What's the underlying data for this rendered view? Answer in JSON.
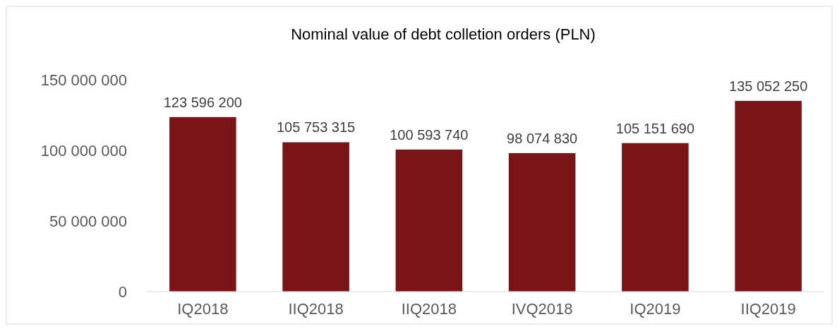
{
  "chart_data": {
    "type": "bar",
    "title": "Nominal value of debt colletion orders (PLN)",
    "categories": [
      "IQ2018",
      "IIQ2018",
      "IIQ2018",
      "IVQ2018",
      "IQ2019",
      "IIQ2019"
    ],
    "values": [
      123596200,
      105753315,
      100593740,
      98074830,
      105151690,
      135052250
    ],
    "value_labels": [
      "123 596 200",
      "105 753 315",
      "100 593 740",
      "98 074 830",
      "105 151 690",
      "135 052 250"
    ],
    "color": "#7b1416",
    "ylim": [
      0,
      150000000
    ],
    "yticks": [
      {
        "value": 0,
        "label": "0"
      },
      {
        "value": 50000000,
        "label": "50 000 000"
      },
      {
        "value": 100000000,
        "label": "100 000 000"
      },
      {
        "value": 150000000,
        "label": "150 000 000"
      }
    ],
    "grid": false
  }
}
